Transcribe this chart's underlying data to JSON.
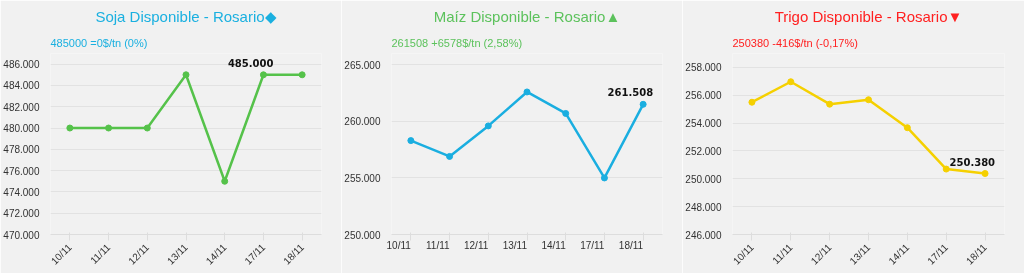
{
  "chart_data": [
    {
      "type": "line",
      "title": "Soja Disponible - Rosario◆",
      "subtitle": "485000 =0$/tn (0%)",
      "categories": [
        "10/11",
        "11/11",
        "12/11",
        "13/11",
        "14/11",
        "17/11",
        "18/11"
      ],
      "series": [
        {
          "color": "#55c24a",
          "values": [
            480000,
            480000,
            480000,
            485000,
            475000,
            485000,
            485000
          ],
          "value_labels": [
            null,
            null,
            null,
            null,
            null,
            "485.000",
            null
          ]
        }
      ],
      "ylim": [
        470000,
        487000
      ],
      "yticks": [
        {
          "value": 470000,
          "label": "470.000"
        },
        {
          "value": 472000,
          "label": "472.000"
        },
        {
          "value": 474000,
          "label": "474.000"
        },
        {
          "value": 476000,
          "label": "476.000"
        },
        {
          "value": 478000,
          "label": "478.000"
        },
        {
          "value": 480000,
          "label": "480.000"
        },
        {
          "value": 482000,
          "label": "482.000"
        },
        {
          "value": 484000,
          "label": "484.000"
        },
        {
          "value": 486000,
          "label": "486.000"
        }
      ],
      "grid": "y",
      "marker": "circle",
      "line_style": "solid"
    },
    {
      "type": "line",
      "title": "Maíz Disponible - Rosario▲",
      "subtitle": "261508 +6578$/tn (2,58%)",
      "categories": [
        "10/11",
        "11/11",
        "12/11",
        "13/11",
        "14/11",
        "17/11",
        "18/11"
      ],
      "series": [
        {
          "color": "#1aaee0",
          "values": [
            258300,
            256900,
            259600,
            262600,
            260700,
            255000,
            261508
          ],
          "value_labels": [
            null,
            null,
            null,
            null,
            null,
            null,
            "261.508"
          ]
        }
      ],
      "ylim": [
        250000,
        266000
      ],
      "yticks": [
        {
          "value": 250000,
          "label": "250.000"
        },
        {
          "value": 255000,
          "label": "255.000"
        },
        {
          "value": 260000,
          "label": "260.000"
        },
        {
          "value": 265000,
          "label": "265.000"
        }
      ],
      "grid": "y",
      "marker": "circle",
      "line_style": "solid"
    },
    {
      "type": "line",
      "title": "Trigo Disponible - Rosario▼",
      "subtitle": "250380 -416$/tn (-0,17%)",
      "categories": [
        "10/11",
        "11/11",
        "12/11",
        "13/11",
        "14/11",
        "17/11",
        "18/11"
      ],
      "series": [
        {
          "color": "#f5d000",
          "values": [
            255500,
            256970,
            255360,
            255680,
            253670,
            250700,
            250380
          ],
          "value_labels": [
            null,
            null,
            null,
            null,
            null,
            null,
            "250.380"
          ]
        }
      ],
      "ylim": [
        246000,
        259000
      ],
      "yticks": [
        {
          "value": 246000,
          "label": "246.000"
        },
        {
          "value": 248000,
          "label": "248.000"
        },
        {
          "value": 250000,
          "label": "250.000"
        },
        {
          "value": 252000,
          "label": "252.000"
        },
        {
          "value": 254000,
          "label": "254.000"
        },
        {
          "value": 256000,
          "label": "256.000"
        },
        {
          "value": 258000,
          "label": "258.000"
        }
      ],
      "grid": "y",
      "marker": "circle",
      "line_style": "solid"
    }
  ]
}
